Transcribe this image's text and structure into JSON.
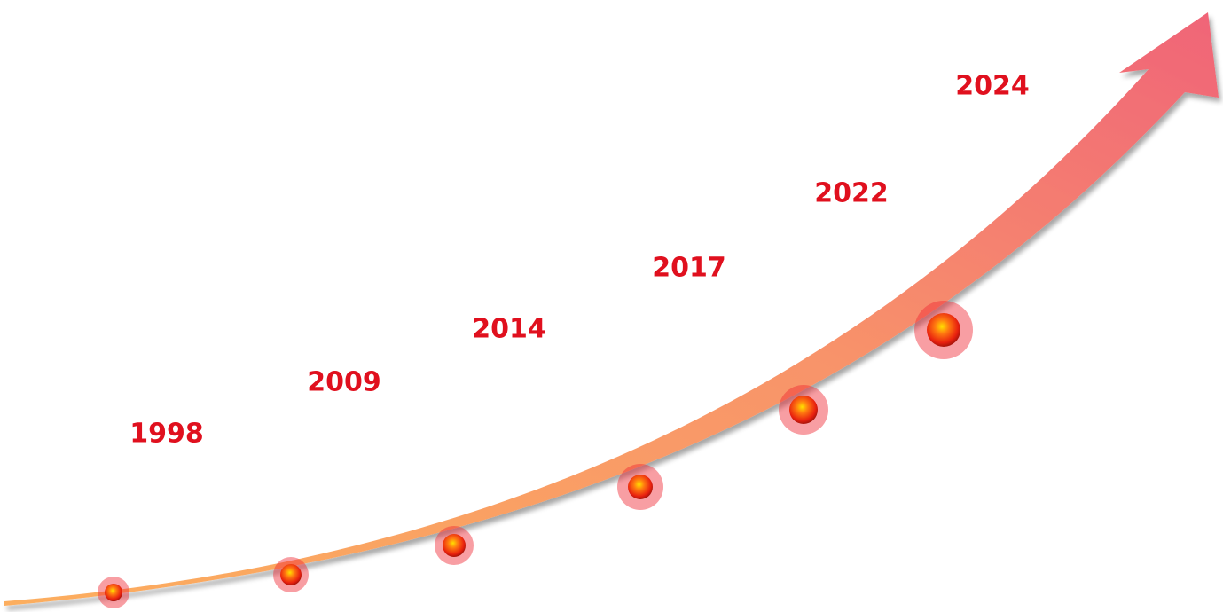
{
  "milestones": [
    {
      "label": "1998"
    },
    {
      "label": "2009"
    },
    {
      "label": "2014"
    },
    {
      "label": "2017"
    },
    {
      "label": "2022"
    },
    {
      "label": "2024"
    }
  ]
}
